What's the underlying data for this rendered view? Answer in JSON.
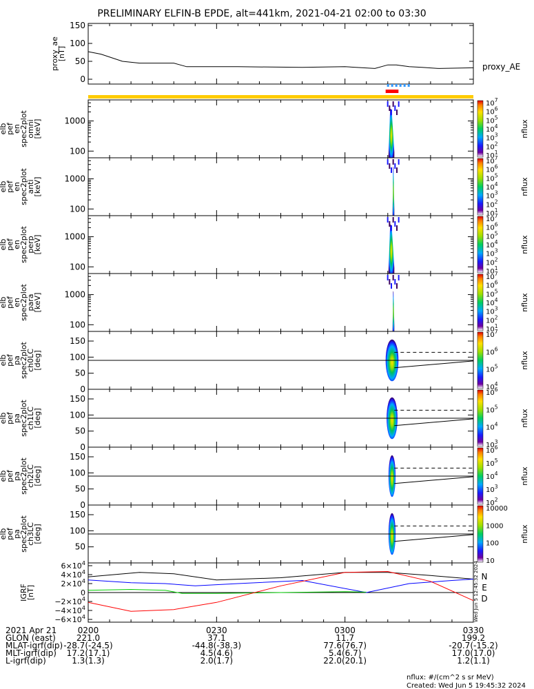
{
  "title": "PRELIMINARY ELFIN-B EPDE, alt=441km, 2021-04-21 02:00 to 03:30",
  "colors": {
    "sci_bar": "#ffcc00",
    "zone_bar": "#ff0000",
    "marker": "#3399ff",
    "grf_n": "#0000ff",
    "grf_e": "#00cc00",
    "grf_d": "#ff0000",
    "grf_total": "#000000"
  },
  "panels": [
    {
      "id": "proxy_ae",
      "ylabel": [
        "proxy_ae",
        "[nT]"
      ],
      "yticks": [
        "150",
        "100",
        "50",
        "0"
      ],
      "side_label": "proxy_AE"
    },
    {
      "id": "en_omni",
      "ylabel": [
        "elb",
        "pef",
        "en",
        "spec2plot",
        "omni",
        "[keV]"
      ],
      "yticks": [
        "1000",
        "100"
      ],
      "cbar_ticks": [
        "10^1",
        "10^2",
        "10^3",
        "10^4",
        "10^5",
        "10^6",
        "10^7"
      ],
      "cbar_label": "nflux"
    },
    {
      "id": "en_anti",
      "ylabel": [
        "elb",
        "pef",
        "en",
        "spec2plot",
        "anti",
        "[keV]"
      ],
      "yticks": [
        "1000",
        "100"
      ],
      "cbar_ticks": [
        "10^1",
        "10^2",
        "10^3",
        "10^4",
        "10^5",
        "10^6",
        "10^7"
      ],
      "cbar_label": "nflux"
    },
    {
      "id": "en_perp",
      "ylabel": [
        "elb",
        "pef",
        "en",
        "spec2plot",
        "perp",
        "[keV]"
      ],
      "yticks": [
        "1000",
        "100"
      ],
      "cbar_ticks": [
        "10^1",
        "10^2",
        "10^3",
        "10^4",
        "10^5",
        "10^6",
        "10^7"
      ],
      "cbar_label": "nflux"
    },
    {
      "id": "en_para",
      "ylabel": [
        "elb",
        "pef",
        "en",
        "spec2plot",
        "para",
        "[keV]"
      ],
      "yticks": [
        "1000",
        "100"
      ],
      "cbar_ticks": [
        "10^1",
        "10^2",
        "10^3",
        "10^4",
        "10^5",
        "10^6",
        "10^7"
      ],
      "cbar_label": "nflux"
    },
    {
      "id": "pa_ch0",
      "ylabel": [
        "elb",
        "pef",
        "pa",
        "spec2plot",
        "ch0LC",
        "[deg]"
      ],
      "yticks": [
        "150",
        "100",
        "50",
        "0"
      ],
      "cbar_ticks": [
        "10^4",
        "10^5",
        "10^6",
        "10^7"
      ],
      "cbar_label": "nflux"
    },
    {
      "id": "pa_ch1",
      "ylabel": [
        "elb",
        "pef",
        "pa",
        "spec2plot",
        "ch1LC",
        "[deg]"
      ],
      "yticks": [
        "150",
        "100",
        "50",
        "0"
      ],
      "cbar_ticks": [
        "10^3",
        "10^4",
        "10^5",
        "10^6"
      ],
      "cbar_label": "nflux"
    },
    {
      "id": "pa_ch2",
      "ylabel": [
        "elb",
        "pef",
        "pa",
        "spec2plot",
        "ch2LC",
        "[deg]"
      ],
      "yticks": [
        "150",
        "100",
        "50",
        "0"
      ],
      "cbar_ticks": [
        "10^2",
        "10^3",
        "10^4",
        "10^5",
        "10^6"
      ],
      "cbar_label": "nflux"
    },
    {
      "id": "pa_ch3",
      "ylabel": [
        "elb",
        "pef",
        "pa",
        "spec2plot",
        "ch3LC",
        "[deg]"
      ],
      "yticks": [
        "150",
        "100",
        "50"
      ],
      "cbar_ticks": [
        "10",
        "100",
        "1000",
        "10000"
      ],
      "cbar_label": "nflux"
    },
    {
      "id": "grf",
      "ylabel": [
        "IGRF",
        "[nT]"
      ],
      "yticks": [
        "6×10^4",
        "4×10^4",
        "2×10^4",
        "0",
        "−2×10^4",
        "−4×10^4",
        "−6×10^4"
      ],
      "legend": [
        "N",
        "E",
        "D"
      ],
      "side_note": "Wed Jun  5 12:45:32 2024"
    }
  ],
  "chart_data": [
    {
      "type": "line",
      "title": "proxy_ae",
      "x_unit": "minutes after 2021-04-21 02:00",
      "ylim": [
        0,
        150
      ],
      "series": [
        {
          "name": "proxy_AE",
          "x": [
            0,
            3,
            8,
            12,
            20,
            23,
            26,
            35,
            50,
            60,
            67,
            70,
            72,
            75,
            78,
            82,
            90
          ],
          "y": [
            77,
            70,
            50,
            45,
            45,
            35,
            35,
            35,
            33,
            35,
            30,
            40,
            40,
            35,
            33,
            30,
            32
          ]
        }
      ]
    },
    {
      "type": "heatmap",
      "title": "elb pef en spec2plot omni",
      "x_unit": "minutes after 2021-04-21 02:00",
      "ylabel": "[keV]",
      "y_scale": "log",
      "cbar_label": "nflux",
      "cbar_scale": "log",
      "cbar_range": [
        10,
        10000000
      ],
      "active_interval": [
        70.0,
        72.0
      ],
      "notes": "energy-time spectrogram, peak flux ~1e6 near 71.5 min, energies ~60–3000 keV"
    },
    {
      "type": "heatmap",
      "title": "elb pef pa spec2plot ch0LC",
      "ylabel": "[deg]",
      "ylim": [
        0,
        180
      ],
      "cbar_label": "nflux",
      "lines": [
        {
          "style": "solid",
          "y": 90
        },
        {
          "style": "dashed",
          "x_range": [
            71.5,
            90
          ],
          "y": 115
        },
        {
          "style": "solid",
          "x_range": [
            71.5,
            90
          ],
          "y_start": 67,
          "y_end": 88
        }
      ]
    }
  ],
  "time_axis": {
    "ticks": [
      "0200",
      "0230",
      "0300",
      "0330"
    ],
    "rows": [
      {
        "label": "2021 Apr 21",
        "values": [
          "0200",
          "0230",
          "0300",
          "0330"
        ]
      },
      {
        "label": "GLON (east)",
        "values": [
          "221.0",
          "37.1",
          "11.7",
          "199.2"
        ]
      },
      {
        "label": "MLAT-igrf(dip)",
        "values": [
          "-28.7(-24.5)",
          "-44.8(-38.3)",
          "77.6(76.7)",
          "-20.7(-15.2)"
        ]
      },
      {
        "label": "MLT-igrf(dip)",
        "values": [
          "17.2(17.1)",
          "4.5(4.6)",
          "5.4(6.7)",
          "17.0(17.0)"
        ]
      },
      {
        "label": "L-igrf(dip)",
        "values": [
          "1.3(1.3)",
          "2.0(1.7)",
          "22.0(20.1)",
          "1.2(1.1)"
        ]
      }
    ]
  },
  "footer": {
    "units": "nflux: #/(cm^2 s sr MeV)",
    "created": "Created: Wed Jun  5 19:45:32 2024"
  }
}
